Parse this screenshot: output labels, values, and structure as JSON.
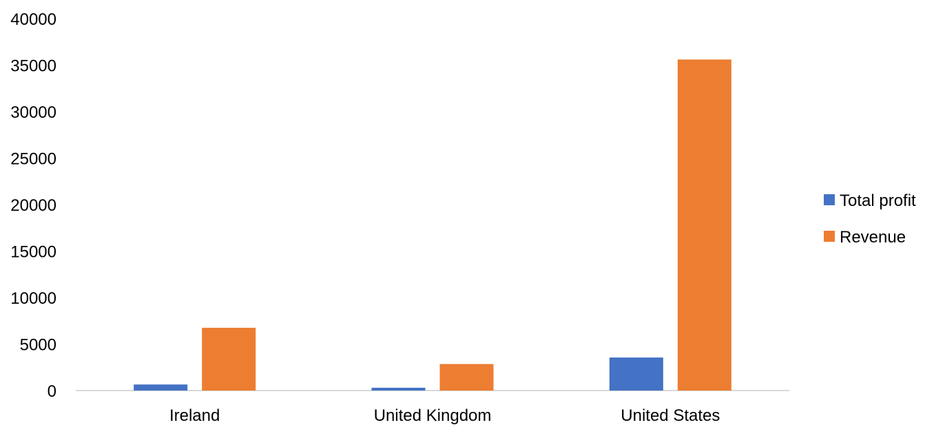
{
  "chart_data": {
    "type": "bar",
    "categories": [
      "Ireland",
      "United Kingdom",
      "United States"
    ],
    "series": [
      {
        "name": "Total profit",
        "color": "#4472C4",
        "values": [
          650,
          300,
          3550
        ]
      },
      {
        "name": "Revenue",
        "color": "#ED7D31",
        "values": [
          6750,
          2850,
          35600
        ]
      }
    ],
    "title": "",
    "xlabel": "",
    "ylabel": "",
    "ylim": [
      0,
      40000
    ],
    "yticks": [
      "0",
      "5000",
      "10000",
      "15000",
      "20000",
      "25000",
      "30000",
      "35000",
      "40000"
    ],
    "grid": false,
    "legend_position": "right"
  }
}
